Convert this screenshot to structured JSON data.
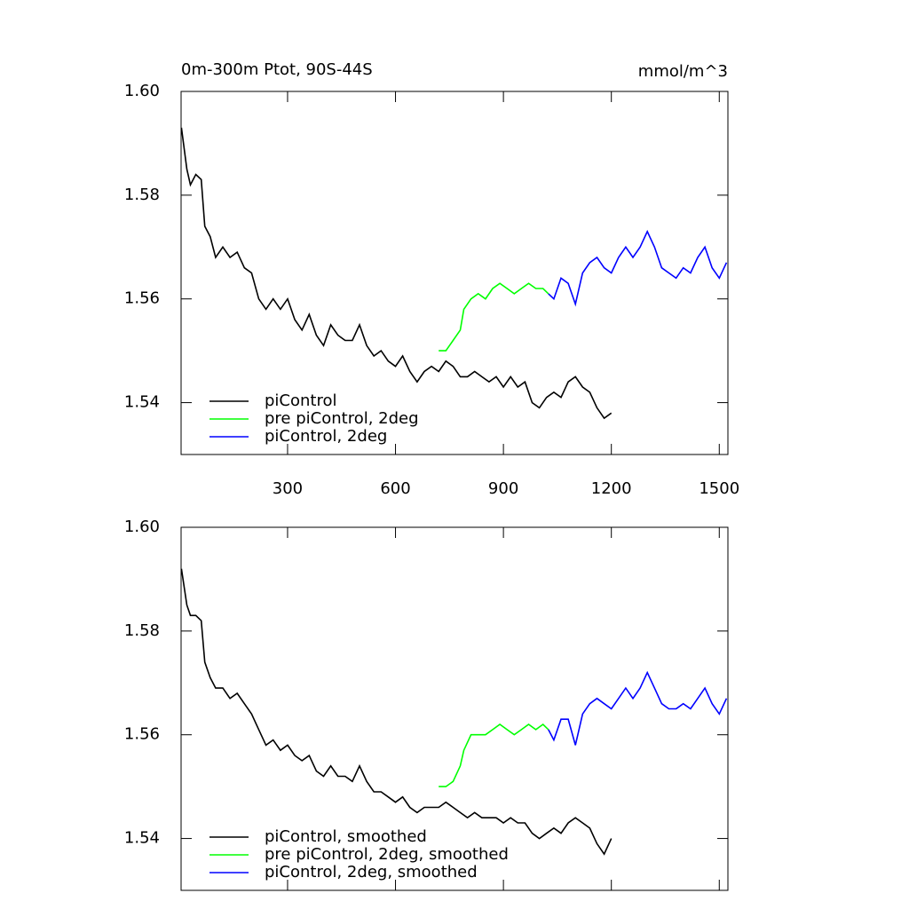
{
  "chart_data": [
    {
      "type": "line",
      "title": "0m-300m Ptot, 90S-44S",
      "units": "mmol/m^3",
      "xlim": [
        4,
        1524
      ],
      "ylim": [
        1.53,
        1.6
      ],
      "xticks": [
        300,
        600,
        900,
        1200,
        1500
      ],
      "xtick_labels": true,
      "yticks": [
        {
          "value": 1.54,
          "label": "1.54"
        },
        {
          "value": 1.56,
          "label": "1.56"
        },
        {
          "value": 1.58,
          "label": "1.58"
        },
        {
          "value": 1.6,
          "label": "1.60"
        }
      ],
      "legend": "lower left",
      "series": [
        {
          "name": "piControl",
          "color": "#000000",
          "x": [
            5,
            20,
            30,
            45,
            60,
            70,
            85,
            100,
            120,
            140,
            160,
            180,
            200,
            220,
            240,
            260,
            280,
            300,
            320,
            340,
            360,
            380,
            400,
            420,
            440,
            460,
            480,
            500,
            520,
            540,
            560,
            580,
            600,
            620,
            640,
            660,
            680,
            700,
            720,
            740,
            760,
            780,
            800,
            820,
            840,
            860,
            880,
            900,
            920,
            940,
            960,
            980,
            1000,
            1020,
            1040,
            1060,
            1080,
            1100,
            1120,
            1140,
            1160,
            1180,
            1200
          ],
          "values": [
            1.593,
            1.585,
            1.582,
            1.584,
            1.583,
            1.574,
            1.572,
            1.568,
            1.57,
            1.568,
            1.569,
            1.566,
            1.565,
            1.56,
            1.558,
            1.56,
            1.558,
            1.56,
            1.556,
            1.554,
            1.557,
            1.553,
            1.551,
            1.555,
            1.553,
            1.552,
            1.552,
            1.555,
            1.551,
            1.549,
            1.55,
            1.548,
            1.547,
            1.549,
            1.546,
            1.544,
            1.546,
            1.547,
            1.546,
            1.548,
            1.547,
            1.545,
            1.545,
            1.546,
            1.545,
            1.544,
            1.545,
            1.543,
            1.545,
            1.543,
            1.544,
            1.54,
            1.539,
            1.541,
            1.542,
            1.541,
            1.544,
            1.545,
            1.543,
            1.542,
            1.539,
            1.537,
            1.538
          ]
        },
        {
          "name": "pre piControl, 2deg",
          "color": "#00ff00",
          "x": [
            720,
            740,
            760,
            780,
            790,
            810,
            830,
            850,
            870,
            890,
            910,
            930,
            950,
            970,
            990,
            1010,
            1025
          ],
          "values": [
            1.55,
            1.55,
            1.552,
            1.554,
            1.558,
            1.56,
            1.561,
            1.56,
            1.562,
            1.563,
            1.562,
            1.561,
            1.562,
            1.563,
            1.562,
            1.562,
            1.561
          ]
        },
        {
          "name": "piControl, 2deg",
          "color": "#0000ff",
          "x": [
            1025,
            1040,
            1060,
            1080,
            1100,
            1120,
            1140,
            1160,
            1180,
            1200,
            1220,
            1240,
            1260,
            1280,
            1300,
            1320,
            1340,
            1360,
            1380,
            1400,
            1420,
            1440,
            1460,
            1480,
            1500,
            1520
          ],
          "values": [
            1.561,
            1.56,
            1.564,
            1.563,
            1.559,
            1.565,
            1.567,
            1.568,
            1.566,
            1.565,
            1.568,
            1.57,
            1.568,
            1.57,
            1.573,
            1.57,
            1.566,
            1.565,
            1.564,
            1.566,
            1.565,
            1.568,
            1.57,
            1.566,
            1.564,
            1.567
          ]
        }
      ]
    },
    {
      "type": "line",
      "xlim": [
        4,
        1524
      ],
      "ylim": [
        1.53,
        1.6
      ],
      "xticks": [
        300,
        600,
        900,
        1200,
        1500
      ],
      "xtick_labels": false,
      "yticks": [
        {
          "value": 1.54,
          "label": "1.54"
        },
        {
          "value": 1.56,
          "label": "1.56"
        },
        {
          "value": 1.58,
          "label": "1.58"
        },
        {
          "value": 1.6,
          "label": "1.60"
        }
      ],
      "legend": "lower left",
      "series": [
        {
          "name": "piControl, smoothed",
          "color": "#000000",
          "x": [
            5,
            20,
            30,
            45,
            60,
            70,
            85,
            100,
            120,
            140,
            160,
            180,
            200,
            220,
            240,
            260,
            280,
            300,
            320,
            340,
            360,
            380,
            400,
            420,
            440,
            460,
            480,
            500,
            520,
            540,
            560,
            580,
            600,
            620,
            640,
            660,
            680,
            700,
            720,
            740,
            760,
            780,
            800,
            820,
            840,
            860,
            880,
            900,
            920,
            940,
            960,
            980,
            1000,
            1020,
            1040,
            1060,
            1080,
            1100,
            1120,
            1140,
            1160,
            1180,
            1200
          ],
          "values": [
            1.592,
            1.585,
            1.583,
            1.583,
            1.582,
            1.574,
            1.571,
            1.569,
            1.569,
            1.567,
            1.568,
            1.566,
            1.564,
            1.561,
            1.558,
            1.559,
            1.557,
            1.558,
            1.556,
            1.555,
            1.556,
            1.553,
            1.552,
            1.554,
            1.552,
            1.552,
            1.551,
            1.554,
            1.551,
            1.549,
            1.549,
            1.548,
            1.547,
            1.548,
            1.546,
            1.545,
            1.546,
            1.546,
            1.546,
            1.547,
            1.546,
            1.545,
            1.544,
            1.545,
            1.544,
            1.544,
            1.544,
            1.543,
            1.544,
            1.543,
            1.543,
            1.541,
            1.54,
            1.541,
            1.542,
            1.541,
            1.543,
            1.544,
            1.543,
            1.542,
            1.539,
            1.537,
            1.54
          ]
        },
        {
          "name": "pre piControl, 2deg, smoothed",
          "color": "#00ff00",
          "x": [
            720,
            740,
            760,
            780,
            790,
            810,
            830,
            850,
            870,
            890,
            910,
            930,
            950,
            970,
            990,
            1010,
            1025
          ],
          "values": [
            1.55,
            1.55,
            1.551,
            1.554,
            1.557,
            1.56,
            1.56,
            1.56,
            1.561,
            1.562,
            1.561,
            1.56,
            1.561,
            1.562,
            1.561,
            1.562,
            1.561
          ]
        },
        {
          "name": "piControl, 2deg, smoothed",
          "color": "#0000ff",
          "x": [
            1025,
            1040,
            1060,
            1080,
            1100,
            1120,
            1140,
            1160,
            1180,
            1200,
            1220,
            1240,
            1260,
            1280,
            1300,
            1320,
            1340,
            1360,
            1380,
            1400,
            1420,
            1440,
            1460,
            1480,
            1500,
            1520
          ],
          "values": [
            1.561,
            1.559,
            1.563,
            1.563,
            1.558,
            1.564,
            1.566,
            1.567,
            1.566,
            1.565,
            1.567,
            1.569,
            1.567,
            1.569,
            1.572,
            1.569,
            1.566,
            1.565,
            1.565,
            1.566,
            1.565,
            1.567,
            1.569,
            1.566,
            1.564,
            1.567
          ]
        }
      ]
    }
  ]
}
